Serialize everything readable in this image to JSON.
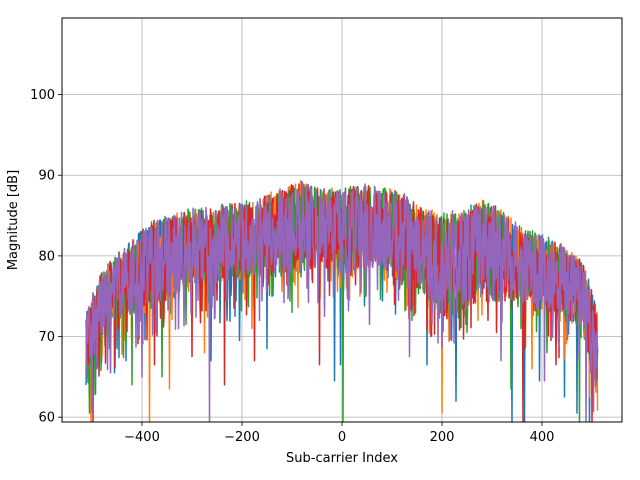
{
  "chart_data": {
    "type": "line",
    "title": "",
    "xlabel": "Sub-carrier Index",
    "ylabel": "Magnitude [dB]",
    "xlim": [
      -560,
      560
    ],
    "ylim": [
      59.4,
      109.5
    ],
    "xticks": [
      -400,
      -200,
      0,
      200,
      400
    ],
    "yticks": [
      60,
      70,
      80,
      90,
      100
    ],
    "xtick_labels": [
      "−400",
      "−200",
      "0",
      "200",
      "400"
    ],
    "ytick_labels": [
      "60",
      "70",
      "80",
      "90",
      "100"
    ],
    "grid": true,
    "legend": "none",
    "x_range": [
      -512,
      511
    ],
    "envelope": {
      "x": [
        -512,
        -480,
        -440,
        -400,
        -360,
        -300,
        -240,
        -180,
        -120,
        -80,
        -40,
        0,
        40,
        80,
        120,
        160,
        200,
        240,
        280,
        320,
        360,
        400,
        440,
        480,
        511
      ],
      "center": [
        68,
        74,
        76.5,
        78,
        79.5,
        81,
        81.5,
        82,
        83,
        83.5,
        83.5,
        83,
        83.5,
        83.5,
        82,
        80.5,
        78.5,
        79.5,
        80.5,
        80,
        78.5,
        78,
        77,
        75,
        68
      ],
      "peak": [
        73,
        78.5,
        81,
        83.5,
        85,
        86,
        86.5,
        87,
        88.5,
        89.5,
        88.5,
        88.5,
        89,
        88.5,
        88,
        86,
        85.5,
        86,
        87,
        86,
        83.5,
        83,
        81.5,
        79.5,
        74
      ]
    },
    "series": [
      {
        "color": "#1f77b4",
        "values": [],
        "deep_fades": [
          [
            -455,
            65.5
          ],
          [
            -432,
            67.0
          ],
          [
            -262,
            67.0
          ],
          [
            -205,
            69.5
          ],
          [
            -150,
            68.5
          ],
          [
            -15,
            64.5
          ],
          [
            -3,
            66.5
          ],
          [
            170,
            66.5
          ],
          [
            228,
            62.0
          ],
          [
            340,
            59.4
          ],
          [
            365,
            59.4
          ],
          [
            395,
            64.5
          ],
          [
            445,
            62.5
          ],
          [
            470,
            60.5
          ],
          [
            495,
            59.4
          ]
        ]
      },
      {
        "color": "#ff7f0e",
        "values": [],
        "deep_fades": [
          [
            -502,
            59.4
          ],
          [
            -480,
            67.5
          ],
          [
            -385,
            59.4
          ],
          [
            -345,
            63.5
          ],
          [
            -275,
            68.0
          ],
          [
            -180,
            71.0
          ],
          [
            15,
            74.5
          ],
          [
            85,
            77.0
          ],
          [
            200,
            60.5
          ],
          [
            272,
            72.0
          ],
          [
            380,
            66.0
          ],
          [
            430,
            72.0
          ],
          [
            495,
            62.5
          ]
        ]
      },
      {
        "color": "#2ca02c",
        "values": [],
        "deep_fades": [
          [
            -505,
            60.5
          ],
          [
            -465,
            68.5
          ],
          [
            -420,
            64.0
          ],
          [
            -360,
            65.0
          ],
          [
            -232,
            74.5
          ],
          [
            -100,
            73.0
          ],
          [
            2,
            59.4
          ],
          [
            140,
            72.0
          ],
          [
            250,
            70.5
          ],
          [
            338,
            63.5
          ],
          [
            410,
            68.0
          ],
          [
            475,
            59.4
          ]
        ]
      },
      {
        "color": "#d62728",
        "values": [],
        "deep_fades": [
          [
            -498,
            59.4
          ],
          [
            -447,
            71.0
          ],
          [
            -375,
            66.5
          ],
          [
            -300,
            67.5
          ],
          [
            -235,
            64.0
          ],
          [
            -175,
            67.0
          ],
          [
            -45,
            66.5
          ],
          [
            105,
            74.0
          ],
          [
            178,
            70.0
          ],
          [
            292,
            72.0
          ],
          [
            362,
            59.4
          ],
          [
            428,
            66.5
          ],
          [
            500,
            59.4
          ]
        ]
      },
      {
        "color": "#9467bd",
        "values": [],
        "deep_fades": [
          [
            -490,
            66.0
          ],
          [
            -400,
            65.0
          ],
          [
            -265,
            59.4
          ],
          [
            -165,
            72.0
          ],
          [
            -35,
            72.5
          ],
          [
            55,
            71.5
          ],
          [
            135,
            67.5
          ],
          [
            230,
            73.0
          ],
          [
            318,
            67.0
          ],
          [
            405,
            64.5
          ],
          [
            488,
            59.4
          ]
        ]
      }
    ]
  }
}
